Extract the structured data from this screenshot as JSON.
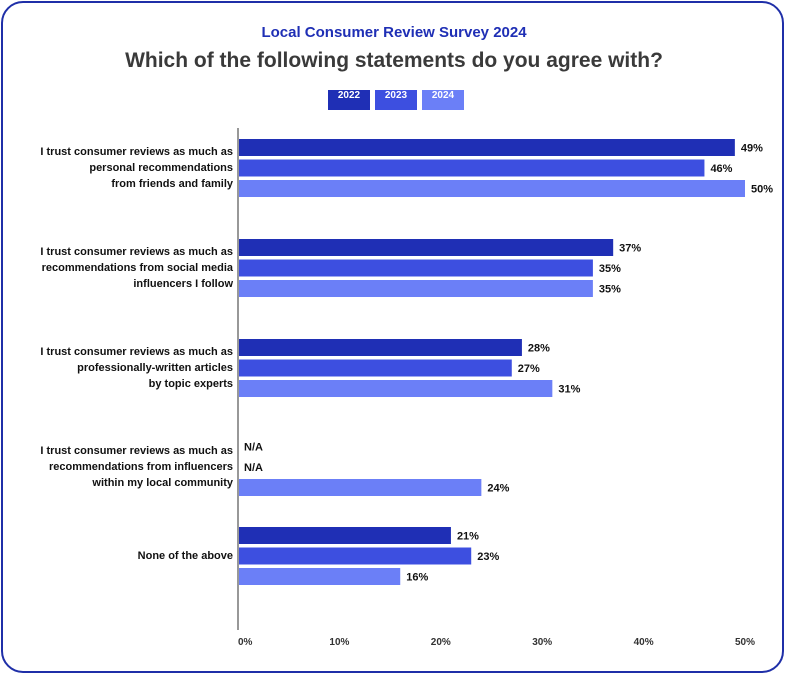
{
  "subtitle": "Local Consumer Review Survey 2024",
  "title": "Which of the following statements do you agree with?",
  "legend": [
    {
      "label": "2022",
      "color": "#1f2fb5"
    },
    {
      "label": "2023",
      "color": "#3d4fe0"
    },
    {
      "label": "2024",
      "color": "#6b7ff7"
    }
  ],
  "chart_data": {
    "type": "bar",
    "orientation": "horizontal",
    "categories": [
      "I trust consumer reviews as much as personal recommendations from friends and family",
      "I trust consumer reviews as much as recommendations from social media influencers I follow",
      "I trust consumer reviews as much as professionally-written articles by topic experts",
      "I trust consumer reviews as much as recommendations from influencers within my local community",
      "None of the above"
    ],
    "category_lines": [
      [
        "I trust consumer reviews as much as",
        "personal recommendations",
        "from friends and family"
      ],
      [
        "I trust consumer reviews as much as",
        "recommendations from social media",
        "influencers I follow"
      ],
      [
        "I trust consumer reviews as much as",
        "professionally-written articles",
        "by topic experts"
      ],
      [
        "I trust consumer reviews as much as",
        "recommendations from influencers",
        "within my local community"
      ],
      [
        "None of the above"
      ]
    ],
    "series": [
      {
        "name": "2022",
        "values": [
          49,
          37,
          28,
          null,
          21
        ],
        "labels": [
          "49%",
          "37%",
          "28%",
          "N/A",
          "21%"
        ]
      },
      {
        "name": "2023",
        "values": [
          46,
          35,
          27,
          null,
          23
        ],
        "labels": [
          "46%",
          "35%",
          "27%",
          "N/A",
          "23%"
        ]
      },
      {
        "name": "2024",
        "values": [
          50,
          35,
          31,
          24,
          16
        ],
        "labels": [
          "50%",
          "35%",
          "31%",
          "24%",
          "16%"
        ]
      }
    ],
    "xlim": [
      0,
      50
    ],
    "xticks": [
      "0%",
      "10%",
      "20%",
      "30%",
      "40%",
      "50%"
    ],
    "xlabel": "",
    "ylabel": "",
    "legend_position": "top-center",
    "grid": false
  }
}
